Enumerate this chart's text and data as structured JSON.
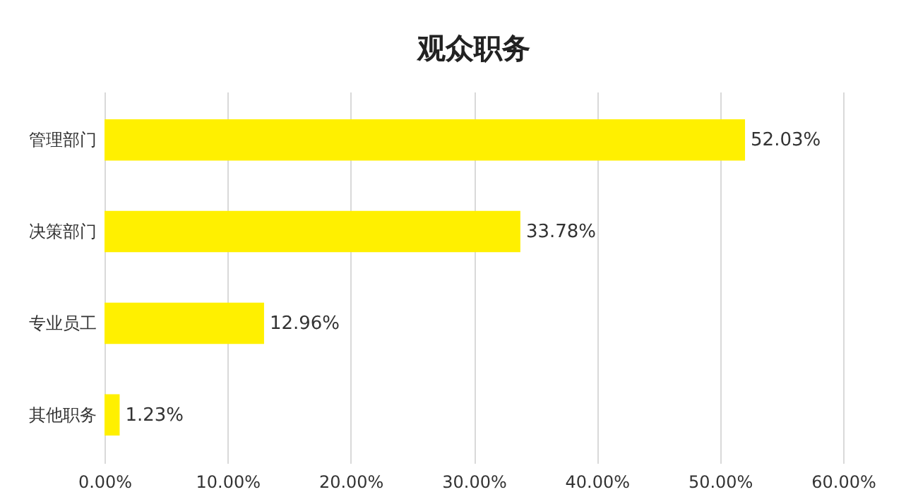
{
  "chart_data": {
    "type": "bar",
    "orientation": "horizontal",
    "title": "观众职务",
    "categories": [
      "管理部门",
      "决策部门",
      "专业员工",
      "其他职务"
    ],
    "values": [
      52.03,
      33.78,
      12.96,
      1.23
    ],
    "value_labels": [
      "52.03%",
      "33.78%",
      "12.96%",
      "1.23%"
    ],
    "color": "#fff000",
    "xlim": [
      0,
      60
    ],
    "xticks": [
      {
        "value": 0,
        "label": "0.00%"
      },
      {
        "value": 10,
        "label": "10.00%"
      },
      {
        "value": 20,
        "label": "20.00%"
      },
      {
        "value": 30,
        "label": "30.00%"
      },
      {
        "value": 40,
        "label": "40.00%"
      },
      {
        "value": 50,
        "label": "50.00%"
      },
      {
        "value": 60,
        "label": "60.00%"
      }
    ],
    "grid": "x"
  }
}
